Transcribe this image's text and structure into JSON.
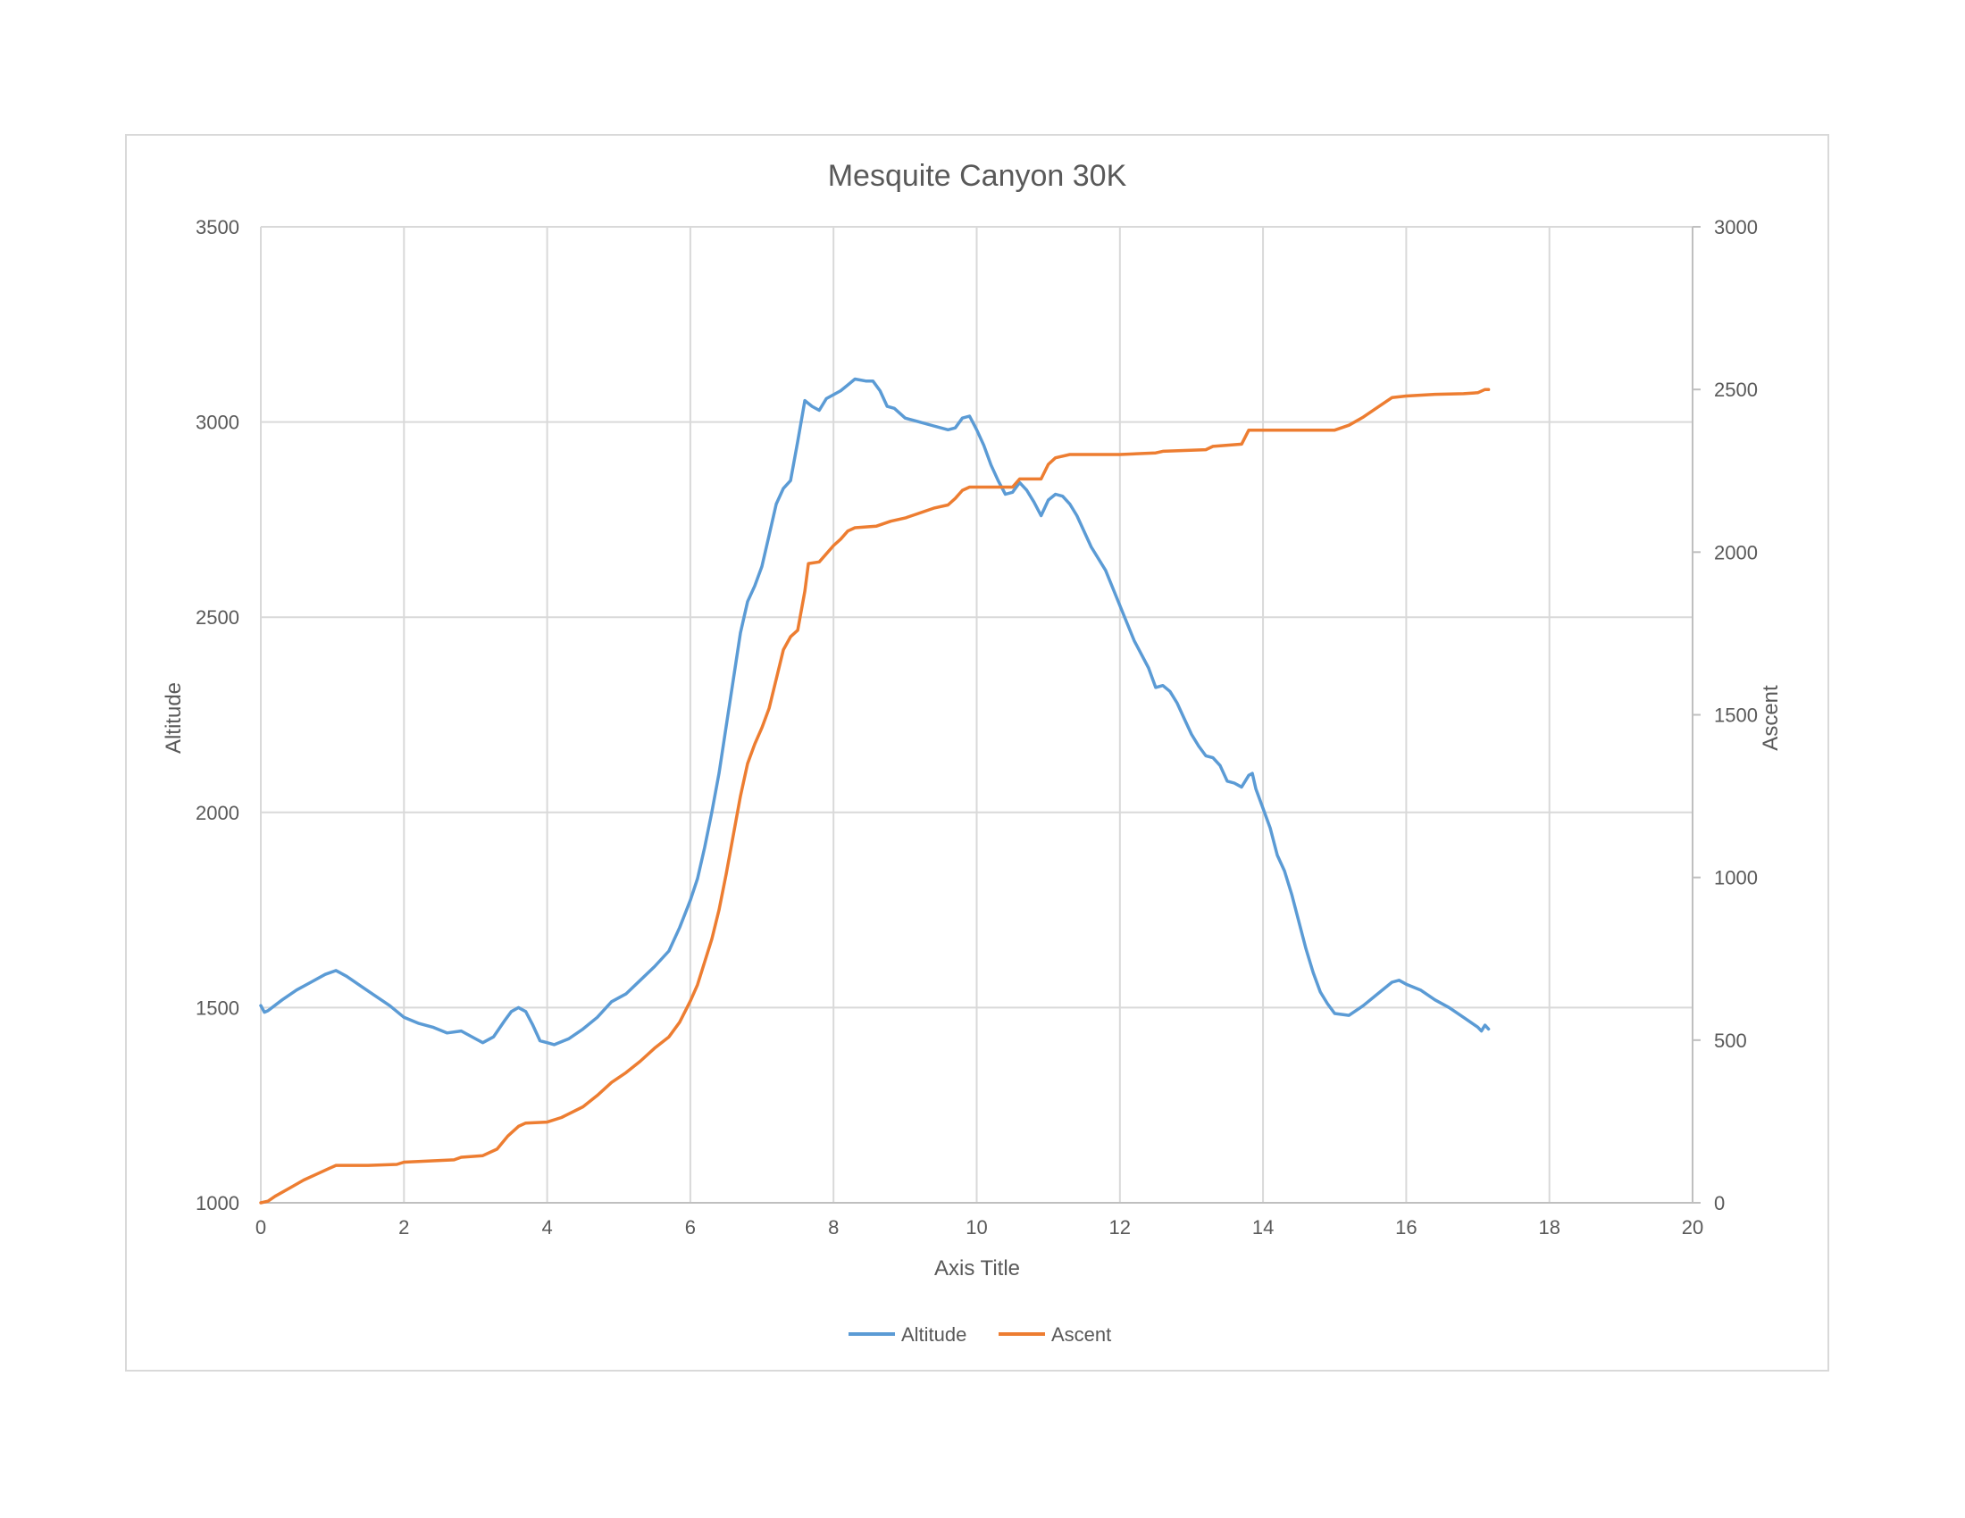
{
  "chart_data": {
    "type": "line",
    "title": "Mesquite Canyon 30K",
    "xlabel": "Axis Title",
    "ylabel": "Altitude",
    "y2label": "Ascent",
    "xlim": [
      0,
      20
    ],
    "ylim": [
      1000,
      3500
    ],
    "y2lim": [
      0,
      3000
    ],
    "xticks": [
      "0",
      "2",
      "4",
      "6",
      "8",
      "10",
      "12",
      "14",
      "16",
      "18",
      "20"
    ],
    "yticks": [
      "1000",
      "1500",
      "2000",
      "2500",
      "3000",
      "3500"
    ],
    "y2ticks": [
      "0",
      "500",
      "1000",
      "1500",
      "2000",
      "2500",
      "3000"
    ],
    "grid": true,
    "legend_position": "bottom",
    "series": [
      {
        "name": "Altitude",
        "axis": "left",
        "color": "#5B9BD5",
        "points": [
          [
            0,
            1505
          ],
          [
            0.05,
            1488
          ],
          [
            0.1,
            1492
          ],
          [
            0.3,
            1520
          ],
          [
            0.5,
            1545
          ],
          [
            0.7,
            1565
          ],
          [
            0.9,
            1585
          ],
          [
            1.05,
            1595
          ],
          [
            1.2,
            1580
          ],
          [
            1.4,
            1555
          ],
          [
            1.6,
            1530
          ],
          [
            1.8,
            1505
          ],
          [
            2.0,
            1475
          ],
          [
            2.2,
            1460
          ],
          [
            2.4,
            1450
          ],
          [
            2.6,
            1435
          ],
          [
            2.8,
            1440
          ],
          [
            3.0,
            1420
          ],
          [
            3.1,
            1410
          ],
          [
            3.25,
            1425
          ],
          [
            3.4,
            1465
          ],
          [
            3.5,
            1490
          ],
          [
            3.6,
            1500
          ],
          [
            3.7,
            1490
          ],
          [
            3.8,
            1455
          ],
          [
            3.9,
            1415
          ],
          [
            4.0,
            1410
          ],
          [
            4.1,
            1405
          ],
          [
            4.3,
            1420
          ],
          [
            4.5,
            1445
          ],
          [
            4.7,
            1475
          ],
          [
            4.9,
            1515
          ],
          [
            5.1,
            1535
          ],
          [
            5.3,
            1570
          ],
          [
            5.5,
            1605
          ],
          [
            5.7,
            1645
          ],
          [
            5.85,
            1705
          ],
          [
            6.0,
            1775
          ],
          [
            6.1,
            1830
          ],
          [
            6.2,
            1910
          ],
          [
            6.3,
            2000
          ],
          [
            6.4,
            2100
          ],
          [
            6.5,
            2220
          ],
          [
            6.6,
            2340
          ],
          [
            6.7,
            2460
          ],
          [
            6.8,
            2540
          ],
          [
            6.9,
            2580
          ],
          [
            7.0,
            2630
          ],
          [
            7.1,
            2710
          ],
          [
            7.2,
            2790
          ],
          [
            7.3,
            2830
          ],
          [
            7.4,
            2850
          ],
          [
            7.5,
            2950
          ],
          [
            7.6,
            3055
          ],
          [
            7.7,
            3040
          ],
          [
            7.8,
            3030
          ],
          [
            7.9,
            3060
          ],
          [
            8.0,
            3070
          ],
          [
            8.1,
            3080
          ],
          [
            8.2,
            3095
          ],
          [
            8.3,
            3110
          ],
          [
            8.45,
            3105
          ],
          [
            8.55,
            3105
          ],
          [
            8.65,
            3080
          ],
          [
            8.75,
            3040
          ],
          [
            8.85,
            3035
          ],
          [
            9.0,
            3010
          ],
          [
            9.2,
            3000
          ],
          [
            9.4,
            2990
          ],
          [
            9.6,
            2980
          ],
          [
            9.7,
            2985
          ],
          [
            9.8,
            3010
          ],
          [
            9.9,
            3015
          ],
          [
            10.0,
            2980
          ],
          [
            10.1,
            2940
          ],
          [
            10.2,
            2890
          ],
          [
            10.3,
            2850
          ],
          [
            10.4,
            2815
          ],
          [
            10.5,
            2820
          ],
          [
            10.6,
            2845
          ],
          [
            10.7,
            2825
          ],
          [
            10.8,
            2795
          ],
          [
            10.9,
            2760
          ],
          [
            11.0,
            2800
          ],
          [
            11.1,
            2815
          ],
          [
            11.2,
            2810
          ],
          [
            11.3,
            2790
          ],
          [
            11.4,
            2760
          ],
          [
            11.5,
            2720
          ],
          [
            11.6,
            2680
          ],
          [
            11.8,
            2620
          ],
          [
            12.0,
            2530
          ],
          [
            12.2,
            2440
          ],
          [
            12.4,
            2370
          ],
          [
            12.5,
            2320
          ],
          [
            12.6,
            2325
          ],
          [
            12.7,
            2310
          ],
          [
            12.8,
            2280
          ],
          [
            12.9,
            2240
          ],
          [
            13.0,
            2200
          ],
          [
            13.1,
            2170
          ],
          [
            13.2,
            2145
          ],
          [
            13.3,
            2140
          ],
          [
            13.4,
            2120
          ],
          [
            13.5,
            2080
          ],
          [
            13.6,
            2075
          ],
          [
            13.7,
            2065
          ],
          [
            13.8,
            2095
          ],
          [
            13.85,
            2100
          ],
          [
            13.9,
            2060
          ],
          [
            14.0,
            2010
          ],
          [
            14.1,
            1960
          ],
          [
            14.2,
            1890
          ],
          [
            14.3,
            1850
          ],
          [
            14.4,
            1790
          ],
          [
            14.5,
            1720
          ],
          [
            14.6,
            1650
          ],
          [
            14.7,
            1590
          ],
          [
            14.8,
            1540
          ],
          [
            14.9,
            1510
          ],
          [
            15.0,
            1485
          ],
          [
            15.2,
            1480
          ],
          [
            15.4,
            1505
          ],
          [
            15.6,
            1535
          ],
          [
            15.8,
            1565
          ],
          [
            15.9,
            1570
          ],
          [
            16.0,
            1560
          ],
          [
            16.2,
            1545
          ],
          [
            16.4,
            1520
          ],
          [
            16.6,
            1500
          ],
          [
            16.8,
            1475
          ],
          [
            17.0,
            1450
          ],
          [
            17.05,
            1440
          ],
          [
            17.1,
            1455
          ],
          [
            17.15,
            1445
          ]
        ]
      },
      {
        "name": "Ascent",
        "axis": "right",
        "color": "#ED7D31",
        "points": [
          [
            0,
            0
          ],
          [
            0.1,
            5
          ],
          [
            0.2,
            20
          ],
          [
            0.4,
            45
          ],
          [
            0.6,
            70
          ],
          [
            0.8,
            90
          ],
          [
            0.95,
            105
          ],
          [
            1.05,
            115
          ],
          [
            1.5,
            115
          ],
          [
            1.9,
            118
          ],
          [
            2.0,
            125
          ],
          [
            2.3,
            128
          ],
          [
            2.7,
            132
          ],
          [
            2.8,
            140
          ],
          [
            3.1,
            145
          ],
          [
            3.3,
            165
          ],
          [
            3.45,
            205
          ],
          [
            3.6,
            235
          ],
          [
            3.7,
            245
          ],
          [
            4.0,
            248
          ],
          [
            4.2,
            262
          ],
          [
            4.5,
            295
          ],
          [
            4.7,
            330
          ],
          [
            4.9,
            370
          ],
          [
            5.1,
            400
          ],
          [
            5.3,
            435
          ],
          [
            5.5,
            475
          ],
          [
            5.7,
            510
          ],
          [
            5.85,
            555
          ],
          [
            6.0,
            620
          ],
          [
            6.1,
            670
          ],
          [
            6.2,
            740
          ],
          [
            6.3,
            810
          ],
          [
            6.4,
            900
          ],
          [
            6.5,
            1010
          ],
          [
            6.6,
            1130
          ],
          [
            6.7,
            1250
          ],
          [
            6.8,
            1350
          ],
          [
            6.9,
            1410
          ],
          [
            7.0,
            1460
          ],
          [
            7.1,
            1520
          ],
          [
            7.2,
            1610
          ],
          [
            7.3,
            1700
          ],
          [
            7.4,
            1740
          ],
          [
            7.5,
            1760
          ],
          [
            7.6,
            1880
          ],
          [
            7.65,
            1965
          ],
          [
            7.8,
            1970
          ],
          [
            7.9,
            1995
          ],
          [
            8.0,
            2020
          ],
          [
            8.1,
            2040
          ],
          [
            8.2,
            2065
          ],
          [
            8.3,
            2075
          ],
          [
            8.6,
            2080
          ],
          [
            8.8,
            2095
          ],
          [
            9.0,
            2105
          ],
          [
            9.2,
            2120
          ],
          [
            9.4,
            2135
          ],
          [
            9.6,
            2145
          ],
          [
            9.7,
            2165
          ],
          [
            9.8,
            2190
          ],
          [
            9.9,
            2200
          ],
          [
            10.5,
            2200
          ],
          [
            10.6,
            2225
          ],
          [
            10.9,
            2225
          ],
          [
            11.0,
            2270
          ],
          [
            11.1,
            2290
          ],
          [
            11.3,
            2300
          ],
          [
            12.0,
            2300
          ],
          [
            12.5,
            2305
          ],
          [
            12.6,
            2310
          ],
          [
            13.2,
            2315
          ],
          [
            13.3,
            2325
          ],
          [
            13.7,
            2332
          ],
          [
            13.8,
            2375
          ],
          [
            14.0,
            2375
          ],
          [
            15.0,
            2375
          ],
          [
            15.2,
            2390
          ],
          [
            15.4,
            2415
          ],
          [
            15.6,
            2445
          ],
          [
            15.8,
            2475
          ],
          [
            16.0,
            2480
          ],
          [
            16.4,
            2485
          ],
          [
            16.8,
            2487
          ],
          [
            17.0,
            2490
          ],
          [
            17.1,
            2500
          ],
          [
            17.15,
            2500
          ]
        ]
      }
    ]
  }
}
